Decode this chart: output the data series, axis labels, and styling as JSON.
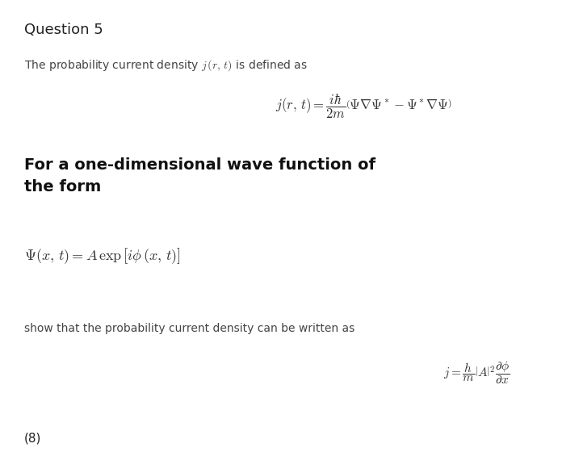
{
  "bg_color": "#ffffff",
  "title": "Question 5",
  "line1_plain": "The probability current density ",
  "line1_math": "$j\\,(r,\\, t)$",
  "line1_rest": " is defined as",
  "eq1": "$j(r,\\, t) = \\dfrac{i\\hbar}{2m}\\left(\\Psi\\nabla\\Psi^* - \\Psi^*\\nabla\\Psi\\right)$",
  "bold_line1": "For a one-dimensional wave function of",
  "bold_line2": "the form",
  "eq2": "$\\Psi(x,\\, t) = A\\,\\exp\\left[i\\phi\\,(x,\\, t)\\right]$",
  "line2": "show that the probability current density can be written as",
  "eq3": "$j = \\dfrac{h}{m}\\left|A\\right|^2\\dfrac{\\partial\\phi}{\\partial x}$",
  "footer": "(8)",
  "title_fs": 13,
  "line_fs": 10,
  "eq1_fs": 12,
  "bold_fs": 14,
  "eq2_fs": 13,
  "eq3_fs": 11,
  "footer_fs": 11
}
